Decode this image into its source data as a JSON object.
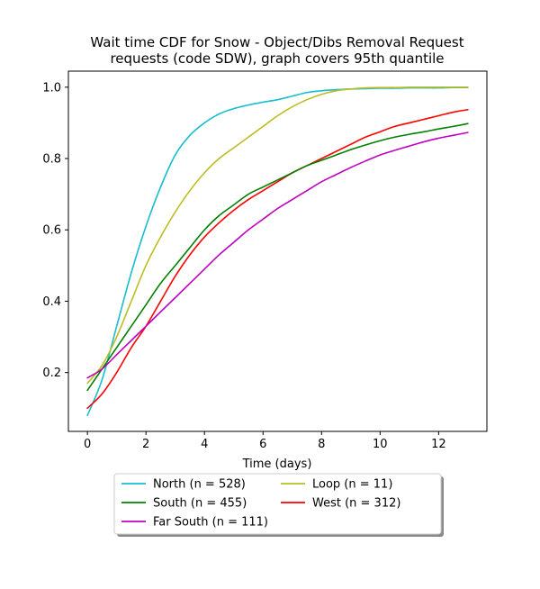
{
  "chart_data": {
    "type": "line",
    "title": "Wait time CDF for Snow - Object/Dibs Removal Request",
    "subtitle": "requests (code SDW), graph covers 95th quantile",
    "xlabel": "Time (days)",
    "ylabel": "",
    "xlim": [
      -0.65,
      13.65
    ],
    "ylim": [
      0.035,
      1.045
    ],
    "x_ticks": [
      0,
      2,
      4,
      6,
      8,
      10,
      12
    ],
    "y_ticks": [
      0.2,
      0.4,
      0.6,
      0.8,
      1.0
    ],
    "x_tick_labels": [
      "0",
      "2",
      "4",
      "6",
      "8",
      "10",
      "12"
    ],
    "y_tick_labels": [
      "0.2",
      "0.4",
      "0.6",
      "0.8",
      "1.0"
    ],
    "grid": false,
    "legend_position": "below",
    "x": [
      0,
      0.5,
      1,
      1.5,
      2,
      2.5,
      3,
      3.5,
      4,
      4.5,
      5,
      5.5,
      6,
      6.5,
      7,
      7.5,
      8,
      8.5,
      9,
      9.5,
      10,
      10.5,
      11,
      11.5,
      12,
      12.5,
      13
    ],
    "series": [
      {
        "name": "North (n = 528)",
        "color": "#17becf",
        "values": [
          0.08,
          0.18,
          0.33,
          0.48,
          0.61,
          0.72,
          0.81,
          0.865,
          0.9,
          0.925,
          0.94,
          0.95,
          0.958,
          0.965,
          0.975,
          0.985,
          0.99,
          0.993,
          0.995,
          0.996,
          0.997,
          0.997,
          0.998,
          0.998,
          0.998,
          0.999,
          0.999
        ]
      },
      {
        "name": "West (n = 312)",
        "color": "#ff0000",
        "values": [
          0.1,
          0.14,
          0.2,
          0.27,
          0.33,
          0.4,
          0.47,
          0.53,
          0.58,
          0.62,
          0.655,
          0.685,
          0.71,
          0.735,
          0.76,
          0.78,
          0.8,
          0.82,
          0.84,
          0.86,
          0.875,
          0.89,
          0.9,
          0.91,
          0.92,
          0.93,
          0.937
        ]
      },
      {
        "name": "Loop (n = 11)",
        "color": "#bcbd22",
        "values": [
          0.17,
          0.22,
          0.3,
          0.4,
          0.5,
          0.58,
          0.65,
          0.71,
          0.76,
          0.8,
          0.83,
          0.86,
          0.89,
          0.92,
          0.945,
          0.965,
          0.98,
          0.99,
          0.995,
          0.998,
          0.999,
          0.999,
          1.0,
          1.0,
          1.0,
          1.0,
          1.0
        ]
      },
      {
        "name": "South (n = 455)",
        "color": "#008000",
        "values": [
          0.15,
          0.21,
          0.27,
          0.33,
          0.39,
          0.45,
          0.5,
          0.55,
          0.6,
          0.64,
          0.67,
          0.7,
          0.72,
          0.74,
          0.76,
          0.78,
          0.795,
          0.81,
          0.825,
          0.838,
          0.85,
          0.86,
          0.868,
          0.875,
          0.883,
          0.89,
          0.898
        ]
      },
      {
        "name": "Far South (n = 111)",
        "color": "#bf00bf",
        "values": [
          0.185,
          0.21,
          0.25,
          0.29,
          0.33,
          0.37,
          0.41,
          0.45,
          0.49,
          0.53,
          0.565,
          0.6,
          0.63,
          0.66,
          0.685,
          0.71,
          0.735,
          0.755,
          0.775,
          0.793,
          0.81,
          0.823,
          0.835,
          0.847,
          0.857,
          0.865,
          0.873
        ]
      }
    ],
    "legend_layout": [
      [
        0,
        2
      ],
      [
        3,
        1
      ],
      [
        4
      ]
    ]
  }
}
